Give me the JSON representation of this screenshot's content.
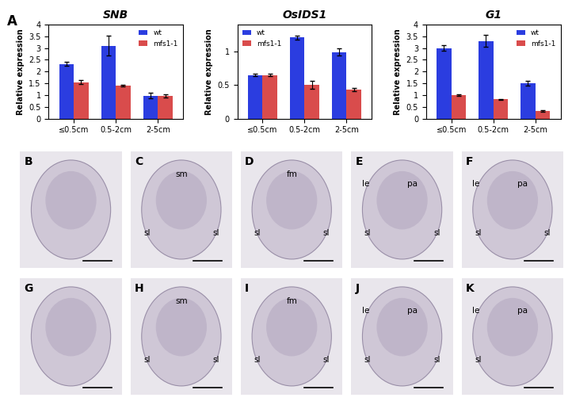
{
  "panel_label": "A",
  "chart_data": [
    {
      "type": "bar",
      "title": "SNB",
      "y_label": "Relative expression",
      "categories": [
        "≤0.5cm",
        "0.5-2cm",
        "2-5cm"
      ],
      "series": [
        {
          "name": "wt",
          "color": "#2b3de0",
          "values": [
            2.33,
            3.1,
            0.97
          ],
          "errors": [
            0.07,
            0.42,
            0.12
          ]
        },
        {
          "name": "mfs1-1",
          "color": "#d94c4c",
          "values": [
            1.55,
            1.4,
            0.96
          ],
          "errors": [
            0.09,
            0.04,
            0.07
          ]
        }
      ],
      "ylim": [
        0,
        4
      ],
      "yticks": [
        0,
        0.5,
        1,
        1.5,
        2,
        2.5,
        3,
        3.5,
        4
      ],
      "legend": "upper right"
    },
    {
      "type": "bar",
      "title": "OsIDS1",
      "y_label": "Relative expression",
      "categories": [
        "≤0.5cm",
        "0.5-2cm",
        "2-5cm"
      ],
      "series": [
        {
          "name": "wt",
          "color": "#2b3de0",
          "values": [
            0.65,
            1.21,
            0.99
          ],
          "errors": [
            0.02,
            0.03,
            0.05
          ]
        },
        {
          "name": "mfs1-1",
          "color": "#d94c4c",
          "values": [
            0.65,
            0.5,
            0.43
          ],
          "errors": [
            0.02,
            0.06,
            0.02
          ]
        }
      ],
      "ylim": [
        0,
        1.4
      ],
      "yticks": [
        0,
        0.5,
        1
      ],
      "legend": "upper left"
    },
    {
      "type": "bar",
      "title": "G1",
      "y_label": "Relative expression",
      "categories": [
        "≤0.5cm",
        "0.5-2cm",
        "2-5cm"
      ],
      "series": [
        {
          "name": "wt",
          "color": "#2b3de0",
          "values": [
            3.0,
            3.3,
            1.5
          ],
          "errors": [
            0.12,
            0.25,
            0.1
          ]
        },
        {
          "name": "mfs1-1",
          "color": "#d94c4c",
          "values": [
            1.0,
            0.82,
            0.32
          ],
          "errors": [
            0.03,
            0.02,
            0.03
          ]
        }
      ],
      "ylim": [
        0,
        4
      ],
      "yticks": [
        0,
        0.5,
        1,
        1.5,
        2,
        2.5,
        3,
        3.5,
        4
      ],
      "legend": "upper right"
    }
  ],
  "image_panels": [
    {
      "label": "B",
      "annotations": []
    },
    {
      "label": "C",
      "annotations": [
        "sm",
        "sl",
        "sl"
      ]
    },
    {
      "label": "D",
      "annotations": [
        "fm",
        "sl",
        "sl"
      ]
    },
    {
      "label": "E",
      "annotations": [
        "le",
        "pa",
        "sl",
        "sl"
      ]
    },
    {
      "label": "F",
      "annotations": [
        "le",
        "pa",
        "sl",
        "sl"
      ]
    },
    {
      "label": "G",
      "annotations": []
    },
    {
      "label": "H",
      "annotations": [
        "sm",
        "sl",
        "sl"
      ]
    },
    {
      "label": "I",
      "annotations": [
        "fm",
        "sl",
        "sl"
      ]
    },
    {
      "label": "J",
      "annotations": [
        "pa",
        "le",
        "sl",
        "sl"
      ]
    },
    {
      "label": "K",
      "annotations": [
        "pa",
        "le",
        "sl"
      ]
    }
  ]
}
